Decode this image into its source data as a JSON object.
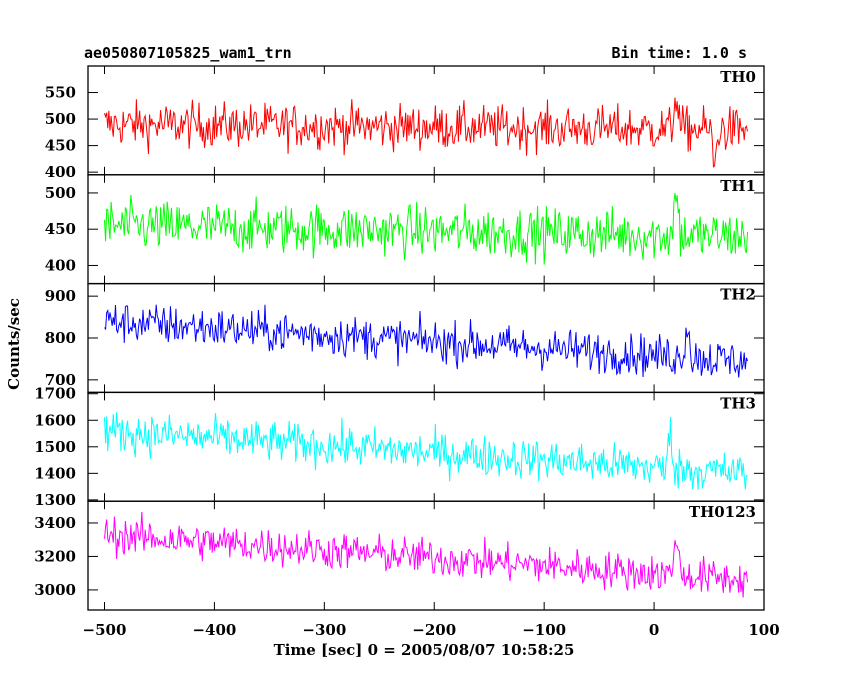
{
  "header": {
    "left_title": "ae050807105825_wam1_trn",
    "right_title": "Bin time: 1.0 s"
  },
  "chart_data": {
    "type": "line",
    "title": "ae050807105825_wam1_trn",
    "subtitle": "Bin time: 1.0 s",
    "xlabel": "Time [sec] 0 = 2005/08/07 10:58:25",
    "ylabel": "Counts/sec",
    "xlim": [
      -515,
      100
    ],
    "x_ticks": [
      -500,
      -400,
      -300,
      -200,
      -100,
      0,
      100
    ],
    "x_tick_labels": [
      "−500",
      "−400",
      "−300",
      "−200",
      "−100",
      "0",
      "100"
    ],
    "x_range_data": [
      -500,
      85
    ],
    "bin_time": 1.0,
    "grid": false,
    "legend": "none (panel labels top-right)",
    "panels": [
      {
        "label": "TH0",
        "color": "#ff0000",
        "ylim": [
          395,
          600
        ],
        "y_ticks": [
          400,
          450,
          500,
          550
        ],
        "trend_start": 490,
        "trend_end": 480,
        "noise_amplitude": 30,
        "events": [
          {
            "x": 20,
            "value": 560
          },
          {
            "x": 55,
            "value": 400
          }
        ]
      },
      {
        "label": "TH1",
        "color": "#00ff00",
        "ylim": [
          375,
          525
        ],
        "y_ticks": [
          400,
          450,
          500
        ],
        "trend_start": 455,
        "trend_end": 440,
        "noise_amplitude": 25,
        "events": [
          {
            "x": 20,
            "value": 515
          }
        ]
      },
      {
        "label": "TH2",
        "color": "#0000ff",
        "ylim": [
          670,
          930
        ],
        "y_ticks": [
          700,
          800,
          900
        ],
        "trend_start": 840,
        "trend_end": 745,
        "noise_amplitude": 35,
        "events": [
          {
            "x": 30,
            "value": 850
          }
        ]
      },
      {
        "label": "TH3",
        "color": "#00ffff",
        "ylim": [
          1295,
          1705
        ],
        "y_ticks": [
          1300,
          1400,
          1500,
          1600,
          1700
        ],
        "trend_start": 1560,
        "trend_end": 1400,
        "noise_amplitude": 55,
        "events": [
          {
            "x": 15,
            "value": 1580
          }
        ]
      },
      {
        "label": "TH0123",
        "color": "#ff00ff",
        "ylim": [
          2880,
          3530
        ],
        "y_ticks": [
          3000,
          3200,
          3400
        ],
        "trend_start": 3330,
        "trend_end": 3060,
        "noise_amplitude": 80,
        "events": [
          {
            "x": 20,
            "value": 3400
          }
        ]
      }
    ]
  }
}
